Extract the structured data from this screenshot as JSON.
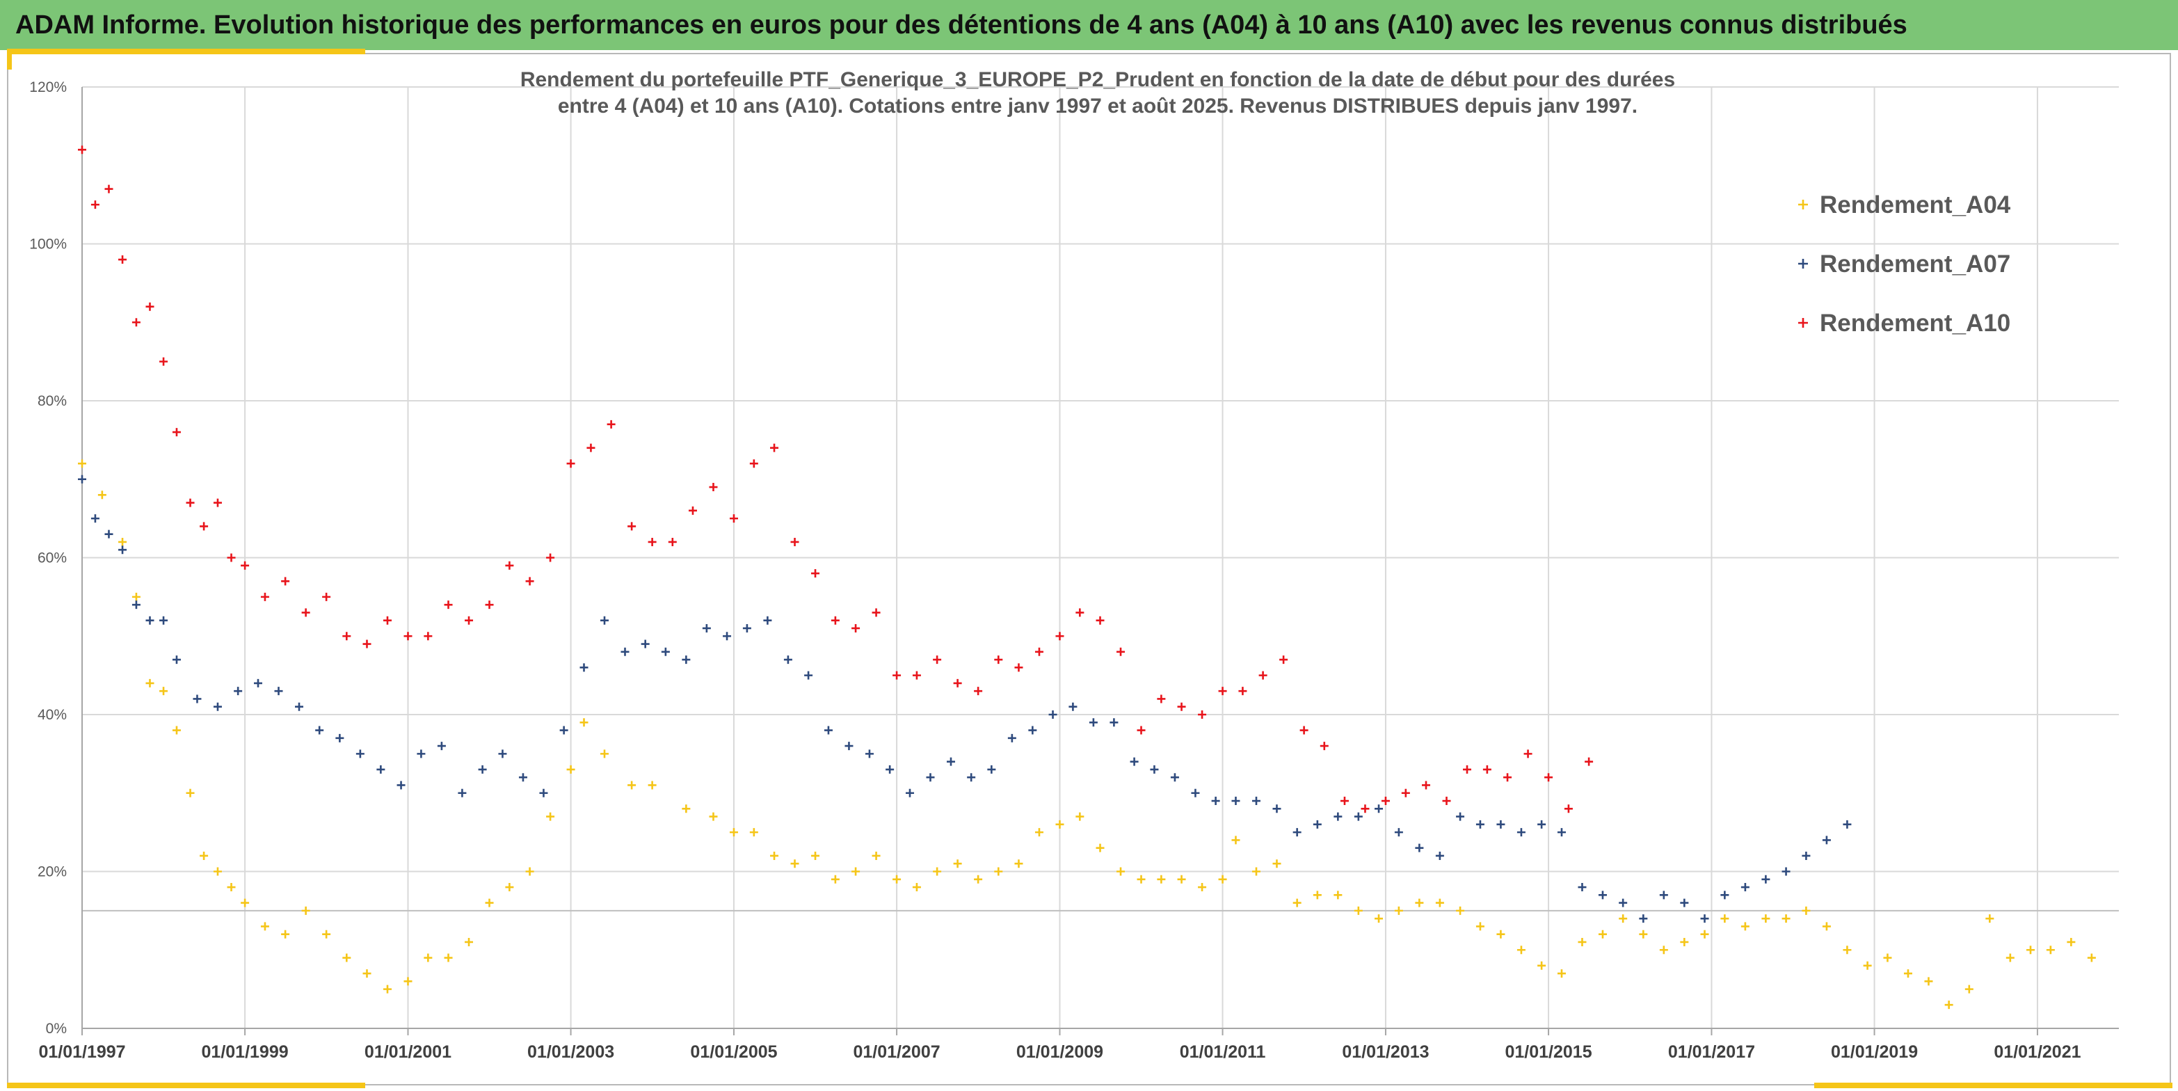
{
  "banner": {
    "title": "ADAM Informe. Evolution historique des performances en euros pour des détentions de 4 ans (A04) à 10 ans (A10) avec les revenus connus distribués"
  },
  "colors": {
    "banner": "#7cc576",
    "accent": "#f5c518",
    "A04": "#f5c518",
    "A07": "#2e4a7d",
    "A10": "#e8141b"
  },
  "chart_data": {
    "type": "scatter",
    "title_lines": [
      "Rendement du portefeuille PTF_Generique_3_EUROPE_P2_Prudent  en fonction de la date de début pour des durées",
      "entre 4 (A04) et 10 ans (A10). Cotations entre janv 1997 et août 2025. Revenus DISTRIBUES depuis janv 1997."
    ],
    "xlabel": "",
    "ylabel": "",
    "x_range": [
      "1997-01-01",
      "2022-01-01"
    ],
    "ylim": [
      0,
      1.2
    ],
    "y_ticks": [
      "0%",
      "20%",
      "40%",
      "60%",
      "80%",
      "100%",
      "120%"
    ],
    "x_ticks": [
      "01/01/1997",
      "01/01/1999",
      "01/01/2001",
      "01/01/2003",
      "01/01/2005",
      "01/01/2007",
      "01/01/2009",
      "01/01/2011",
      "01/01/2013",
      "01/01/2015",
      "01/01/2017",
      "01/01/2019",
      "01/01/2021"
    ],
    "reference_line_y": 0.15,
    "grid": true,
    "legend_position": "top-right",
    "marker": "+",
    "series": [
      {
        "name": "Rendement_A04",
        "color_key": "A04",
        "x": [
          "1997-01-01",
          "1997-04-01",
          "1997-07-01",
          "1997-09-01",
          "1997-11-01",
          "1998-01-01",
          "1998-03-01",
          "1998-05-01",
          "1998-07-01",
          "1998-09-01",
          "1998-11-01",
          "1999-01-01",
          "1999-04-01",
          "1999-07-01",
          "1999-10-01",
          "2000-01-01",
          "2000-04-01",
          "2000-07-01",
          "2000-10-01",
          "2001-01-01",
          "2001-04-01",
          "2001-07-01",
          "2001-10-01",
          "2002-01-01",
          "2002-04-01",
          "2002-07-01",
          "2002-10-01",
          "2003-01-01",
          "2003-03-01",
          "2003-06-01",
          "2003-10-01",
          "2004-01-01",
          "2004-06-01",
          "2004-10-01",
          "2005-01-01",
          "2005-04-01",
          "2005-07-01",
          "2005-10-01",
          "2006-01-01",
          "2006-04-01",
          "2006-07-01",
          "2006-10-01",
          "2007-01-01",
          "2007-04-01",
          "2007-07-01",
          "2007-10-01",
          "2008-01-01",
          "2008-04-01",
          "2008-07-01",
          "2008-10-01",
          "2009-01-01",
          "2009-04-01",
          "2009-07-01",
          "2009-10-01",
          "2010-01-01",
          "2010-04-01",
          "2010-07-01",
          "2010-10-01",
          "2011-01-01",
          "2011-03-01",
          "2011-06-01",
          "2011-09-01",
          "2011-12-01",
          "2012-03-01",
          "2012-06-01",
          "2012-09-01",
          "2012-12-01",
          "2013-03-01",
          "2013-06-01",
          "2013-09-01",
          "2013-12-01",
          "2014-03-01",
          "2014-06-01",
          "2014-09-01",
          "2014-12-01",
          "2015-03-01",
          "2015-06-01",
          "2015-09-01",
          "2015-12-01",
          "2016-03-01",
          "2016-06-01",
          "2016-09-01",
          "2016-12-01",
          "2017-03-01",
          "2017-06-01",
          "2017-09-01",
          "2017-12-01",
          "2018-03-01",
          "2018-06-01",
          "2018-09-01",
          "2018-12-01",
          "2019-03-01",
          "2019-06-01",
          "2019-09-01",
          "2019-12-01",
          "2020-03-01",
          "2020-06-01",
          "2020-09-01",
          "2020-12-01",
          "2021-03-01",
          "2021-06-01",
          "2021-09-01"
        ],
        "y": [
          0.72,
          0.68,
          0.62,
          0.55,
          0.44,
          0.43,
          0.38,
          0.3,
          0.22,
          0.2,
          0.18,
          0.16,
          0.13,
          0.12,
          0.15,
          0.12,
          0.09,
          0.07,
          0.05,
          0.06,
          0.09,
          0.09,
          0.11,
          0.16,
          0.18,
          0.2,
          0.27,
          0.33,
          0.39,
          0.35,
          0.31,
          0.31,
          0.28,
          0.27,
          0.25,
          0.25,
          0.22,
          0.21,
          0.22,
          0.19,
          0.2,
          0.22,
          0.19,
          0.18,
          0.2,
          0.21,
          0.19,
          0.2,
          0.21,
          0.25,
          0.26,
          0.27,
          0.23,
          0.2,
          0.19,
          0.19,
          0.19,
          0.18,
          0.19,
          0.24,
          0.2,
          0.21,
          0.16,
          0.17,
          0.17,
          0.15,
          0.14,
          0.15,
          0.16,
          0.16,
          0.15,
          0.13,
          0.12,
          0.1,
          0.08,
          0.07,
          0.11,
          0.12,
          0.14,
          0.12,
          0.1,
          0.11,
          0.12,
          0.14,
          0.13,
          0.14,
          0.14,
          0.15,
          0.13,
          0.1,
          0.08,
          0.09,
          0.07,
          0.06,
          0.03,
          0.05,
          0.14,
          0.09,
          0.1,
          0.1,
          0.11,
          0.09
        ]
      },
      {
        "name": "Rendement_A07",
        "color_key": "A07",
        "x": [
          "1997-01-01",
          "1997-03-01",
          "1997-05-01",
          "1997-07-01",
          "1997-09-01",
          "1997-11-01",
          "1998-01-01",
          "1998-03-01",
          "1998-06-01",
          "1998-09-01",
          "1998-12-01",
          "1999-03-01",
          "1999-06-01",
          "1999-09-01",
          "1999-12-01",
          "2000-03-01",
          "2000-06-01",
          "2000-09-01",
          "2000-12-01",
          "2001-03-01",
          "2001-06-01",
          "2001-09-01",
          "2001-12-01",
          "2002-03-01",
          "2002-06-01",
          "2002-09-01",
          "2002-12-01",
          "2003-03-01",
          "2003-06-01",
          "2003-09-01",
          "2003-12-01",
          "2004-03-01",
          "2004-06-01",
          "2004-09-01",
          "2004-12-01",
          "2005-03-01",
          "2005-06-01",
          "2005-09-01",
          "2005-12-01",
          "2006-03-01",
          "2006-06-01",
          "2006-09-01",
          "2006-12-01",
          "2007-03-01",
          "2007-06-01",
          "2007-09-01",
          "2007-12-01",
          "2008-03-01",
          "2008-06-01",
          "2008-09-01",
          "2008-12-01",
          "2009-03-01",
          "2009-06-01",
          "2009-09-01",
          "2009-12-01",
          "2010-03-01",
          "2010-06-01",
          "2010-09-01",
          "2010-12-01",
          "2011-03-01",
          "2011-06-01",
          "2011-09-01",
          "2011-12-01",
          "2012-03-01",
          "2012-06-01",
          "2012-09-01",
          "2012-12-01",
          "2013-03-01",
          "2013-06-01",
          "2013-09-01",
          "2013-12-01",
          "2014-03-01",
          "2014-06-01",
          "2014-09-01",
          "2014-12-01",
          "2015-03-01",
          "2015-06-01",
          "2015-09-01",
          "2015-12-01",
          "2016-03-01",
          "2016-06-01",
          "2016-09-01",
          "2016-12-01",
          "2017-03-01",
          "2017-06-01",
          "2017-09-01",
          "2017-12-01",
          "2018-03-01",
          "2018-06-01",
          "2018-09-01"
        ],
        "y": [
          0.7,
          0.65,
          0.63,
          0.61,
          0.54,
          0.52,
          0.52,
          0.47,
          0.42,
          0.41,
          0.43,
          0.44,
          0.43,
          0.41,
          0.38,
          0.37,
          0.35,
          0.33,
          0.31,
          0.35,
          0.36,
          0.3,
          0.33,
          0.35,
          0.32,
          0.3,
          0.38,
          0.46,
          0.52,
          0.48,
          0.49,
          0.48,
          0.47,
          0.51,
          0.5,
          0.51,
          0.52,
          0.47,
          0.45,
          0.38,
          0.36,
          0.35,
          0.33,
          0.3,
          0.32,
          0.34,
          0.32,
          0.33,
          0.37,
          0.38,
          0.4,
          0.41,
          0.39,
          0.39,
          0.34,
          0.33,
          0.32,
          0.3,
          0.29,
          0.29,
          0.29,
          0.28,
          0.25,
          0.26,
          0.27,
          0.27,
          0.28,
          0.25,
          0.23,
          0.22,
          0.27,
          0.26,
          0.26,
          0.25,
          0.26,
          0.25,
          0.18,
          0.17,
          0.16,
          0.14,
          0.17,
          0.16,
          0.14,
          0.17,
          0.18,
          0.19,
          0.2,
          0.22,
          0.24,
          0.26
        ]
      },
      {
        "name": "Rendement_A10",
        "color_key": "A10",
        "x": [
          "1997-01-01",
          "1997-03-01",
          "1997-05-01",
          "1997-07-01",
          "1997-09-01",
          "1997-11-01",
          "1998-01-01",
          "1998-03-01",
          "1998-05-01",
          "1998-07-01",
          "1998-09-01",
          "1998-11-01",
          "1999-01-01",
          "1999-04-01",
          "1999-07-01",
          "1999-10-01",
          "2000-01-01",
          "2000-04-01",
          "2000-07-01",
          "2000-10-01",
          "2001-01-01",
          "2001-04-01",
          "2001-07-01",
          "2001-10-01",
          "2002-01-01",
          "2002-04-01",
          "2002-07-01",
          "2002-10-01",
          "2003-01-01",
          "2003-04-01",
          "2003-07-01",
          "2003-10-01",
          "2004-01-01",
          "2004-04-01",
          "2004-07-01",
          "2004-10-01",
          "2005-01-01",
          "2005-04-01",
          "2005-07-01",
          "2005-10-01",
          "2006-01-01",
          "2006-04-01",
          "2006-07-01",
          "2006-10-01",
          "2007-01-01",
          "2007-04-01",
          "2007-07-01",
          "2007-10-01",
          "2008-01-01",
          "2008-04-01",
          "2008-07-01",
          "2008-10-01",
          "2009-01-01",
          "2009-04-01",
          "2009-07-01",
          "2009-10-01",
          "2010-01-01",
          "2010-04-01",
          "2010-07-01",
          "2010-10-01",
          "2011-01-01",
          "2011-04-01",
          "2011-07-01",
          "2011-10-01",
          "2012-01-01",
          "2012-04-01",
          "2012-07-01",
          "2012-10-01",
          "2013-01-01",
          "2013-04-01",
          "2013-07-01",
          "2013-10-01",
          "2014-01-01",
          "2014-04-01",
          "2014-07-01",
          "2014-10-01",
          "2015-01-01",
          "2015-04-01",
          "2015-07-01"
        ],
        "y": [
          1.12,
          1.05,
          1.07,
          0.98,
          0.9,
          0.92,
          0.85,
          0.76,
          0.67,
          0.64,
          0.67,
          0.6,
          0.59,
          0.55,
          0.57,
          0.53,
          0.55,
          0.5,
          0.49,
          0.52,
          0.5,
          0.5,
          0.54,
          0.52,
          0.54,
          0.59,
          0.57,
          0.6,
          0.72,
          0.74,
          0.77,
          0.64,
          0.62,
          0.62,
          0.66,
          0.69,
          0.65,
          0.72,
          0.74,
          0.62,
          0.58,
          0.52,
          0.51,
          0.53,
          0.45,
          0.45,
          0.47,
          0.44,
          0.43,
          0.47,
          0.46,
          0.48,
          0.5,
          0.53,
          0.52,
          0.48,
          0.38,
          0.42,
          0.41,
          0.4,
          0.43,
          0.43,
          0.45,
          0.47,
          0.38,
          0.36,
          0.29,
          0.28,
          0.29,
          0.3,
          0.31,
          0.29,
          0.33,
          0.33,
          0.32,
          0.35,
          0.32,
          0.28,
          0.34
        ]
      }
    ]
  }
}
